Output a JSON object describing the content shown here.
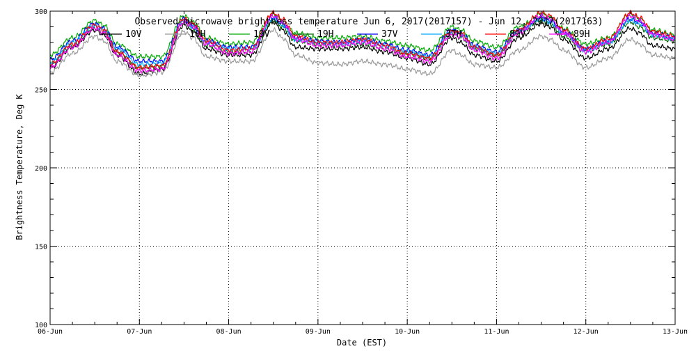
{
  "chart_data": {
    "type": "line",
    "title": "Observed microwave brightness temperature Jun  6, 2017(2017157) - Jun 12, 2017(2017163)",
    "xlabel": "Date (EST)",
    "ylabel": "Brightness Temperature, Deg K",
    "xlim": [
      0,
      7
    ],
    "ylim": [
      100,
      300
    ],
    "x_unit": "days since 06-Jun",
    "x_tick_labels": [
      "06-Jun",
      "07-Jun",
      "08-Jun",
      "09-Jun",
      "10-Jun",
      "11-Jun",
      "12-Jun",
      "13-Jun"
    ],
    "y_ticks": [
      100,
      150,
      200,
      250,
      300
    ],
    "grid": true,
    "legend_placement": "top",
    "x": [
      0.0,
      0.25,
      0.5,
      0.6,
      0.75,
      1.0,
      1.25,
      1.5,
      1.6,
      1.75,
      2.0,
      2.25,
      2.5,
      2.6,
      2.75,
      3.0,
      3.25,
      3.5,
      3.75,
      4.0,
      4.25,
      4.5,
      4.6,
      4.75,
      5.0,
      5.25,
      5.5,
      5.6,
      5.75,
      6.0,
      6.25,
      6.5,
      6.6,
      6.75,
      7.0
    ],
    "series": [
      {
        "name": "10V",
        "color": "#000000",
        "values": [
          264,
          277,
          288,
          285,
          272,
          260,
          263,
          291,
          287,
          276,
          272,
          272,
          293,
          288,
          277,
          276,
          276,
          277,
          274,
          270,
          266,
          283,
          280,
          272,
          268,
          283,
          292,
          290,
          282,
          270,
          276,
          289,
          286,
          278,
          276
        ]
      },
      {
        "name": "10H",
        "color": "#999999",
        "values": [
          261,
          273,
          284,
          281,
          268,
          259,
          261,
          287,
          283,
          271,
          268,
          268,
          288,
          283,
          272,
          267,
          266,
          268,
          266,
          263,
          260,
          275,
          272,
          266,
          264,
          275,
          284,
          282,
          275,
          264,
          270,
          282,
          279,
          272,
          270
        ]
      },
      {
        "name": "19V",
        "color": "#00aa00",
        "values": [
          272,
          283,
          294,
          291,
          279,
          271,
          271,
          297,
          293,
          283,
          279,
          280,
          298,
          294,
          286,
          283,
          283,
          284,
          281,
          278,
          275,
          290,
          288,
          281,
          277,
          290,
          298,
          296,
          289,
          279,
          283,
          298,
          295,
          288,
          285
        ]
      },
      {
        "name": "19H",
        "color": "#006600",
        "values": [
          266,
          278,
          289,
          286,
          274,
          264,
          265,
          293,
          289,
          278,
          274,
          274,
          294,
          290,
          281,
          279,
          278,
          279,
          276,
          273,
          270,
          286,
          283,
          276,
          272,
          286,
          294,
          292,
          284,
          274,
          279,
          293,
          290,
          283,
          281
        ]
      },
      {
        "name": "37V",
        "color": "#0000ff",
        "values": [
          269,
          281,
          292,
          289,
          277,
          268,
          268,
          295,
          291,
          281,
          277,
          277,
          296,
          292,
          283,
          281,
          280,
          282,
          279,
          275,
          272,
          288,
          286,
          278,
          274,
          288,
          296,
          294,
          287,
          276,
          281,
          295,
          293,
          286,
          283
        ]
      },
      {
        "name": "37H",
        "color": "#00aaff",
        "values": [
          267,
          280,
          291,
          288,
          276,
          266,
          267,
          294,
          290,
          280,
          276,
          276,
          295,
          291,
          282,
          280,
          279,
          281,
          278,
          274,
          271,
          287,
          285,
          277,
          273,
          287,
          295,
          293,
          286,
          275,
          280,
          294,
          292,
          285,
          282
        ]
      },
      {
        "name": "89V",
        "color": "#ff0000",
        "values": [
          266,
          279,
          291,
          288,
          274,
          264,
          265,
          295,
          292,
          281,
          275,
          276,
          299,
          295,
          284,
          280,
          280,
          282,
          278,
          273,
          270,
          287,
          286,
          277,
          272,
          288,
          299,
          297,
          288,
          276,
          282,
          299,
          296,
          287,
          284
        ]
      },
      {
        "name": "89H",
        "color": "#ff00ff",
        "values": [
          264,
          277,
          289,
          286,
          272,
          262,
          263,
          293,
          290,
          279,
          273,
          274,
          297,
          293,
          282,
          278,
          278,
          280,
          276,
          271,
          268,
          285,
          284,
          275,
          270,
          286,
          297,
          295,
          286,
          274,
          280,
          297,
          294,
          285,
          282
        ]
      }
    ]
  }
}
